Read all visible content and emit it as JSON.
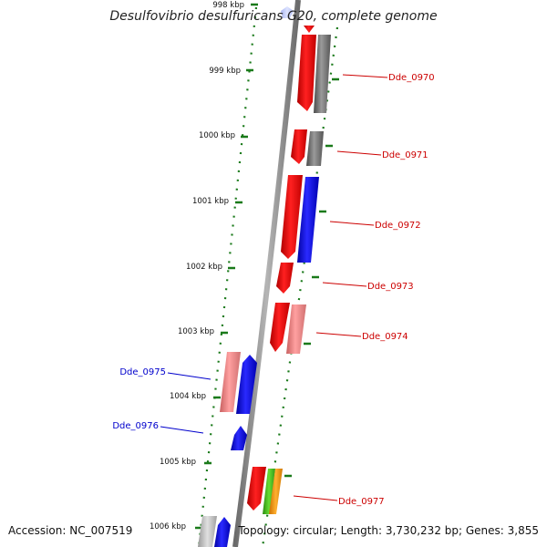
{
  "title": "Desulfovibrio desulfuricans G20, complete genome",
  "footer": {
    "accession": "Accession: NC_007519",
    "summary": "Topology: circular; Length: 3,730,232 bp; Genes: 3,855"
  },
  "ticks": [
    {
      "label": "998 kbp"
    },
    {
      "label": "999 kbp"
    },
    {
      "label": "1000 kbp"
    },
    {
      "label": "1001 kbp"
    },
    {
      "label": "1002 kbp"
    },
    {
      "label": "1003 kbp"
    },
    {
      "label": "1004 kbp"
    },
    {
      "label": "1005 kbp"
    },
    {
      "label": "1006 kbp"
    }
  ],
  "gene_labels": [
    {
      "name": "Dde_0970",
      "color": "#cc0000"
    },
    {
      "name": "Dde_0971",
      "color": "#cc0000"
    },
    {
      "name": "Dde_0972",
      "color": "#cc0000"
    },
    {
      "name": "Dde_0973",
      "color": "#cc0000"
    },
    {
      "name": "Dde_0974",
      "color": "#cc0000"
    },
    {
      "name": "Dde_0975",
      "color": "#0000cc"
    },
    {
      "name": "Dde_0976",
      "color": "#0000cc"
    },
    {
      "name": "Dde_0977",
      "color": "#cc0000"
    }
  ],
  "colors": {
    "backbone": "#8c8c8c",
    "tick": "#1a7a1a",
    "gene_red": "#ee0000",
    "gene_pink": "#ee8080",
    "gene_gray": "#707070",
    "gene_blue": "#0000ee",
    "gene_green": "#44bb22",
    "gene_orange": "#ff9900",
    "gene_lightblue": "#c8d0ff",
    "gene_lightgray": "#bbbbbb"
  }
}
